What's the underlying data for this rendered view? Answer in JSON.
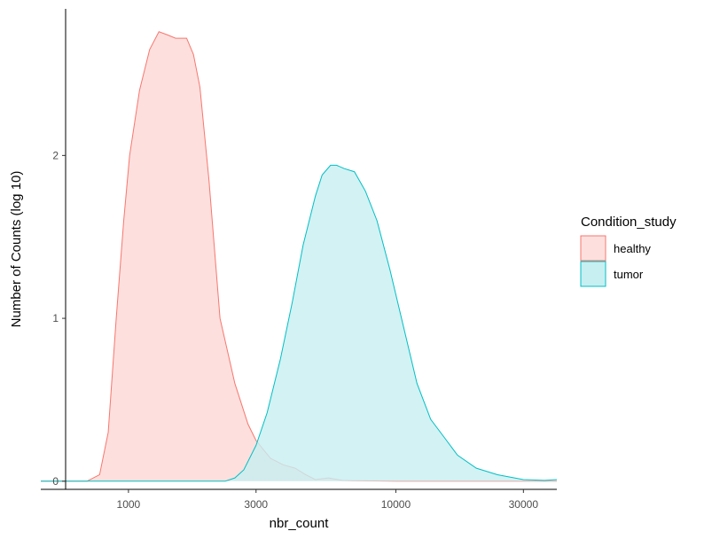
{
  "chart_data": {
    "type": "area",
    "subtype": "density",
    "title": "",
    "xlabel": "nbr_count",
    "ylabel": "Number of Counts (log 10)",
    "x_scale": "log10",
    "xlim": [
      470,
      40000
    ],
    "ylim": [
      -0.05,
      2.9
    ],
    "x_ticks": [
      1000,
      3000,
      10000,
      30000
    ],
    "x_tick_labels": [
      "1000",
      "3000",
      "10000",
      "30000"
    ],
    "y_ticks": [
      0,
      1,
      2
    ],
    "y_tick_labels": [
      "0",
      "1",
      "2"
    ],
    "grid": false,
    "legend": {
      "title": "Condition_study",
      "placement": "right",
      "entries": [
        "healthy",
        "tumor"
      ]
    },
    "series": [
      {
        "name": "healthy",
        "line_color": "#F8766D",
        "fill_color": "#FDE0DE",
        "x": [
          470,
          700,
          780,
          840,
          900,
          960,
          1010,
          1100,
          1200,
          1300,
          1400,
          1500,
          1650,
          1750,
          1850,
          2000,
          2200,
          2500,
          2800,
          3000,
          3400,
          3800,
          4200,
          4600,
          5000,
          5600,
          6300,
          7000,
          10000,
          20000,
          40000
        ],
        "y": [
          0,
          0,
          0.04,
          0.3,
          1.0,
          1.6,
          2.0,
          2.4,
          2.65,
          2.76,
          2.74,
          2.72,
          2.72,
          2.62,
          2.42,
          1.85,
          1.0,
          0.6,
          0.35,
          0.25,
          0.14,
          0.1,
          0.08,
          0.04,
          0.01,
          0.02,
          0.005,
          0.003,
          0,
          0,
          0
        ]
      },
      {
        "name": "tumor",
        "line_color": "#00BFC4",
        "fill_color": "#C7EFF1",
        "x": [
          470,
          2300,
          2500,
          2700,
          3000,
          3300,
          3700,
          4100,
          4500,
          5000,
          5300,
          5700,
          6000,
          6400,
          7000,
          7700,
          8500,
          9500,
          10500,
          12000,
          13500,
          15000,
          17000,
          20000,
          24000,
          30000,
          36000,
          40000
        ],
        "y": [
          0,
          0,
          0.02,
          0.07,
          0.22,
          0.42,
          0.75,
          1.1,
          1.45,
          1.75,
          1.88,
          1.94,
          1.94,
          1.92,
          1.9,
          1.78,
          1.6,
          1.3,
          1.0,
          0.6,
          0.38,
          0.28,
          0.16,
          0.08,
          0.04,
          0.01,
          0.005,
          0.01
        ]
      }
    ]
  }
}
